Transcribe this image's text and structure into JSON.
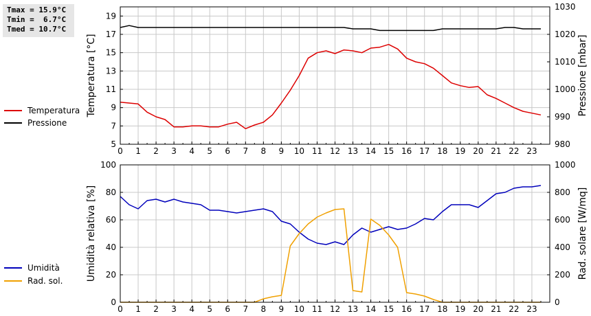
{
  "stats": {
    "tmax": "Tmax = 15.9°C",
    "tmin": "Tmin =  6.7°C",
    "tmed": "Tmed = 10.7°C"
  },
  "colors": {
    "temperatura": "#dd0000",
    "pressione": "#000000",
    "umidita": "#0000bb",
    "rad_sol": "#f0a000",
    "grid": "#c8c8c8"
  },
  "chart_data": [
    {
      "type": "line",
      "x_ticks": [
        "0",
        "1",
        "2",
        "3",
        "4",
        "5",
        "6",
        "7",
        "8",
        "9",
        "10",
        "11",
        "12",
        "13",
        "14",
        "15",
        "16",
        "17",
        "18",
        "19",
        "20",
        "21",
        "22",
        "23"
      ],
      "xlim": [
        0,
        24
      ],
      "ylabel_left": "Temperatura [°C]",
      "ylabel_right": "Pressione [mbar]",
      "y_left_ticks": [
        "5",
        "7",
        "9",
        "11",
        "13",
        "15",
        "17",
        "19"
      ],
      "ylim_left": [
        5,
        20
      ],
      "y_right_ticks": [
        "980",
        "990",
        "1000",
        "1010",
        "1020",
        "1030"
      ],
      "ylim_right": [
        980,
        1030
      ],
      "grid": true,
      "series": [
        {
          "name": "Temperatura",
          "axis": "left",
          "color": "#dd0000",
          "x": [
            0,
            0.5,
            1,
            1.5,
            2,
            2.5,
            3,
            3.5,
            4,
            4.5,
            5,
            5.5,
            6,
            6.5,
            7,
            7.5,
            8,
            8.5,
            9,
            9.5,
            10,
            10.5,
            11,
            11.5,
            12,
            12.5,
            13,
            13.5,
            14,
            14.5,
            15,
            15.5,
            16,
            16.5,
            17,
            17.5,
            18,
            18.5,
            19,
            19.5,
            20,
            20.5,
            21,
            21.5,
            22,
            22.5,
            23,
            23.5
          ],
          "y": [
            9.6,
            9.5,
            9.4,
            8.5,
            8.0,
            7.7,
            6.9,
            6.9,
            7.0,
            7.0,
            6.9,
            6.9,
            7.2,
            7.4,
            6.7,
            7.1,
            7.4,
            8.2,
            9.5,
            10.9,
            12.5,
            14.4,
            15.0,
            15.2,
            14.9,
            15.3,
            15.2,
            15.0,
            15.5,
            15.6,
            15.9,
            15.4,
            14.4,
            14.0,
            13.8,
            13.3,
            12.5,
            11.7,
            11.4,
            11.2,
            11.3,
            10.4,
            10.0,
            9.5,
            9.0,
            8.6,
            8.4,
            8.2
          ]
        },
        {
          "name": "Pressione",
          "axis": "right",
          "color": "#000000",
          "x": [
            0,
            0.5,
            1,
            2,
            3,
            4,
            5,
            6,
            7,
            8,
            9,
            10,
            11,
            12,
            12.5,
            13,
            13.5,
            14,
            14.5,
            15,
            16,
            17,
            17.5,
            18,
            19,
            20,
            21,
            21.5,
            22,
            22.5,
            23,
            23.5
          ],
          "y": [
            1022.5,
            1023.2,
            1022.5,
            1022.5,
            1022.5,
            1022.5,
            1022.5,
            1022.5,
            1022.5,
            1022.5,
            1022.5,
            1022.5,
            1022.5,
            1022.5,
            1022.5,
            1022.0,
            1022.0,
            1022.0,
            1021.4,
            1021.4,
            1021.4,
            1021.4,
            1021.4,
            1022.0,
            1022.0,
            1022.0,
            1022.0,
            1022.5,
            1022.5,
            1022.0,
            1022.0,
            1022.0
          ]
        }
      ]
    },
    {
      "type": "line",
      "x_ticks": [
        "0",
        "1",
        "2",
        "3",
        "4",
        "5",
        "6",
        "7",
        "8",
        "9",
        "10",
        "11",
        "12",
        "13",
        "14",
        "15",
        "16",
        "17",
        "18",
        "19",
        "20",
        "21",
        "22",
        "23"
      ],
      "xlim": [
        0,
        24
      ],
      "ylabel_left": "Umidità relativa [%]",
      "ylabel_right": "Rad. solare [W/mq]",
      "y_left_ticks": [
        "0",
        "20",
        "40",
        "60",
        "80",
        "100"
      ],
      "ylim_left": [
        0,
        100
      ],
      "y_right_ticks": [
        "0",
        "200",
        "400",
        "600",
        "800",
        "1000"
      ],
      "ylim_right": [
        0,
        1000
      ],
      "grid": true,
      "series": [
        {
          "name": "Umidità",
          "axis": "left",
          "color": "#0000bb",
          "x": [
            0,
            0.5,
            1,
            1.5,
            2,
            2.5,
            3,
            3.5,
            4,
            4.5,
            5,
            5.5,
            6,
            6.5,
            7,
            7.5,
            8,
            8.5,
            9,
            9.5,
            10,
            10.5,
            11,
            11.5,
            12,
            12.5,
            13,
            13.5,
            14,
            14.5,
            15,
            15.5,
            16,
            16.5,
            17,
            17.5,
            18,
            18.5,
            19,
            19.5,
            20,
            20.5,
            21,
            21.5,
            22,
            22.5,
            23,
            23.5
          ],
          "y": [
            77,
            71,
            68,
            74,
            75,
            73,
            75,
            73,
            72,
            71,
            67,
            67,
            66,
            65,
            66,
            67,
            68,
            66,
            59,
            57,
            51,
            46,
            43,
            42,
            44,
            42,
            49,
            54,
            51,
            53,
            55,
            53,
            54,
            57,
            61,
            60,
            66,
            71,
            71,
            71,
            69,
            74,
            79,
            80,
            83,
            84,
            84,
            85
          ]
        },
        {
          "name": "Rad. sol.",
          "axis": "right",
          "color": "#f0a000",
          "x": [
            0,
            1,
            2,
            3,
            4,
            5,
            6,
            7,
            7.5,
            8,
            8.5,
            9,
            9.5,
            10,
            10.5,
            11,
            11.5,
            12,
            12.5,
            13,
            13.5,
            14,
            14.5,
            15,
            15.5,
            16,
            16.5,
            17,
            17.5,
            18,
            19,
            20,
            21,
            22,
            23,
            23.5
          ],
          "y": [
            0,
            0,
            0,
            0,
            0,
            0,
            0,
            0,
            0,
            25,
            40,
            50,
            410,
            500,
            570,
            620,
            650,
            675,
            680,
            85,
            75,
            605,
            560,
            490,
            400,
            70,
            60,
            45,
            20,
            0,
            0,
            0,
            0,
            0,
            0,
            0
          ]
        }
      ]
    }
  ],
  "legend": {
    "temperatura": "Temperatura",
    "pressione": "Pressione",
    "umidita": "Umidità",
    "rad_sol": "Rad. sol."
  }
}
